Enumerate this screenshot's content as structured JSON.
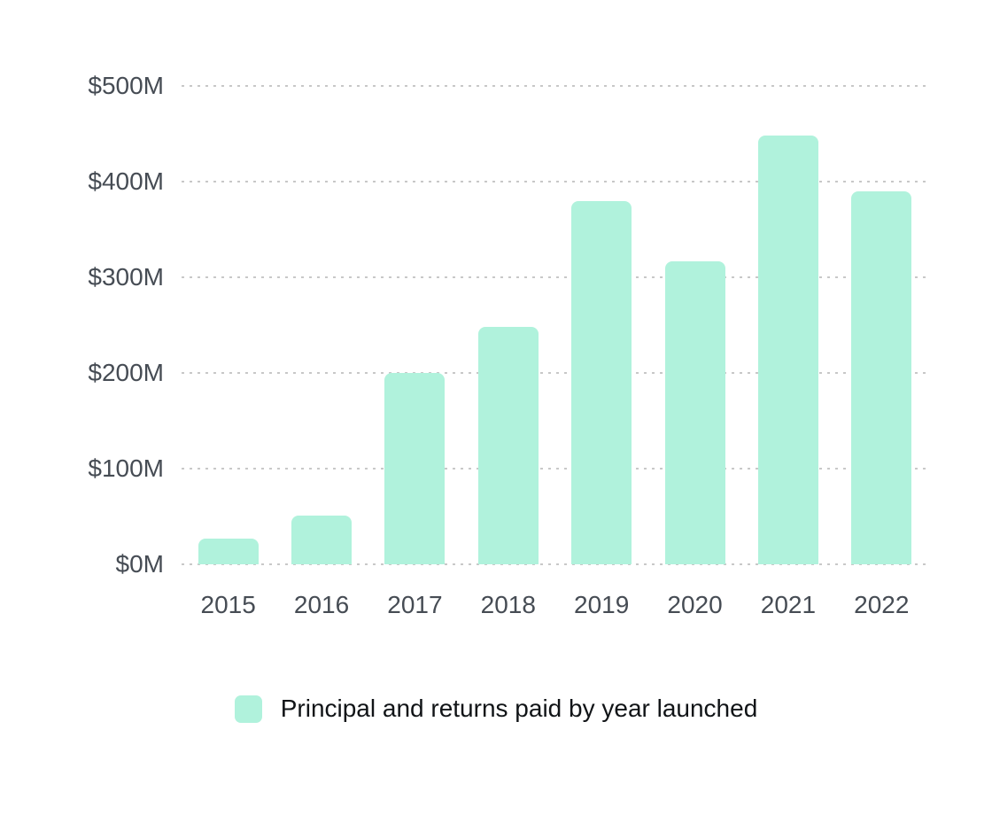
{
  "chart_data": {
    "type": "bar",
    "title": "",
    "xlabel": "",
    "ylabel": "",
    "categories": [
      "2015",
      "2016",
      "2017",
      "2018",
      "2019",
      "2020",
      "2021",
      "2022"
    ],
    "series": [
      {
        "name": "Principal and returns paid by year launched",
        "values": [
          27,
          51,
          200,
          248,
          380,
          317,
          448,
          390
        ]
      }
    ],
    "values_unit": "$M",
    "ylim": [
      0,
      500
    ],
    "yticks": [
      0,
      100,
      200,
      300,
      400,
      500
    ],
    "ytick_labels": [
      "$0M",
      "$100M",
      "$200M",
      "$300M",
      "$400M",
      "$500M"
    ],
    "grid": "horizontal-dashed",
    "legend_position": "bottom-center",
    "legend_label": "Principal and returns paid by year launched",
    "colors": {
      "bar_fill": "#b0f2dc",
      "axis_text": "#464c54",
      "legend_text": "#111417",
      "gridline": "#c8c8c8",
      "background": "#ffffff"
    }
  }
}
